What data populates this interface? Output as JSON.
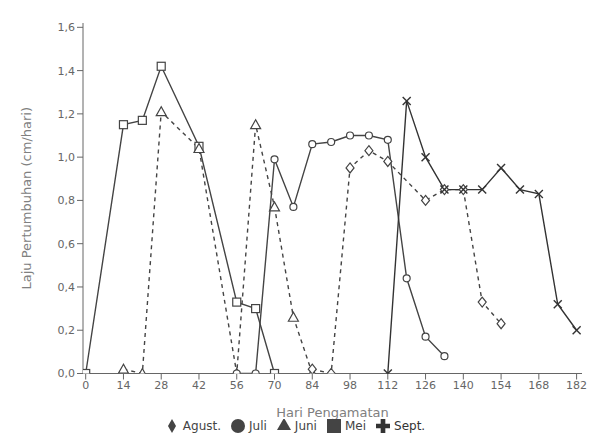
{
  "chart_data": {
    "type": "line",
    "xlabel": "Hari Pengamatan",
    "ylabel": "Laju Pertumbuhan (cm/hari)",
    "xlim": [
      -1,
      184
    ],
    "ylim": [
      0.0,
      1.62
    ],
    "xticks": [
      0,
      14,
      28,
      42,
      56,
      70,
      84,
      98,
      112,
      126,
      140,
      154,
      168,
      182
    ],
    "yticks": [
      {
        "value": 0.0,
        "label": "0,0"
      },
      {
        "value": 0.2,
        "label": "0,2"
      },
      {
        "value": 0.4,
        "label": "0,4"
      },
      {
        "value": 0.6,
        "label": "0,6"
      },
      {
        "value": 0.8,
        "label": "0,8"
      },
      {
        "value": 1.0,
        "label": "1,0"
      },
      {
        "value": 1.2,
        "label": "1,2"
      },
      {
        "value": 1.4,
        "label": "1,4"
      },
      {
        "value": 1.6,
        "label": "1,6"
      }
    ],
    "grid": false,
    "legend": "bottom",
    "series": [
      {
        "name": "Mei",
        "x": [
          0,
          14,
          21,
          28,
          42,
          56,
          63,
          70
        ],
        "values": [
          0.0,
          1.15,
          1.17,
          1.42,
          1.05,
          0.33,
          0.3,
          0.0
        ],
        "color": "#444444",
        "marker": "square",
        "line_style": "solid"
      },
      {
        "name": "Juni",
        "x": [
          14,
          21,
          28,
          42,
          56,
          63,
          70,
          77,
          84
        ],
        "values": [
          0.02,
          0.0,
          1.21,
          1.04,
          0.0,
          1.15,
          0.77,
          0.26,
          0.0
        ],
        "color": "#444444",
        "marker": "triangle",
        "line_style": "dashed"
      },
      {
        "name": "Juli",
        "x": [
          56,
          63,
          70,
          77,
          84,
          91,
          98,
          105,
          112,
          119,
          126,
          133
        ],
        "values": [
          0.0,
          0.0,
          0.99,
          0.77,
          1.06,
          1.07,
          1.1,
          1.1,
          1.08,
          0.44,
          0.17,
          0.08
        ],
        "color": "#444444",
        "marker": "circle",
        "line_style": "solid"
      },
      {
        "name": "Agust.",
        "x": [
          84,
          91,
          98,
          105,
          112,
          126,
          133,
          140,
          147,
          154
        ],
        "values": [
          0.02,
          0.0,
          0.95,
          1.03,
          0.98,
          0.8,
          0.85,
          0.85,
          0.33,
          0.23
        ],
        "color": "#444444",
        "marker": "diamond",
        "line_style": "dashed"
      },
      {
        "name": "Sept.",
        "x": [
          112,
          119,
          126,
          133,
          140,
          147,
          154,
          161,
          168,
          175,
          182
        ],
        "values": [
          0.0,
          1.26,
          1.0,
          0.85,
          0.85,
          0.85,
          0.95,
          0.85,
          0.83,
          0.32,
          0.2
        ],
        "color": "#333333",
        "marker": "x",
        "line_style": "solid"
      }
    ]
  }
}
